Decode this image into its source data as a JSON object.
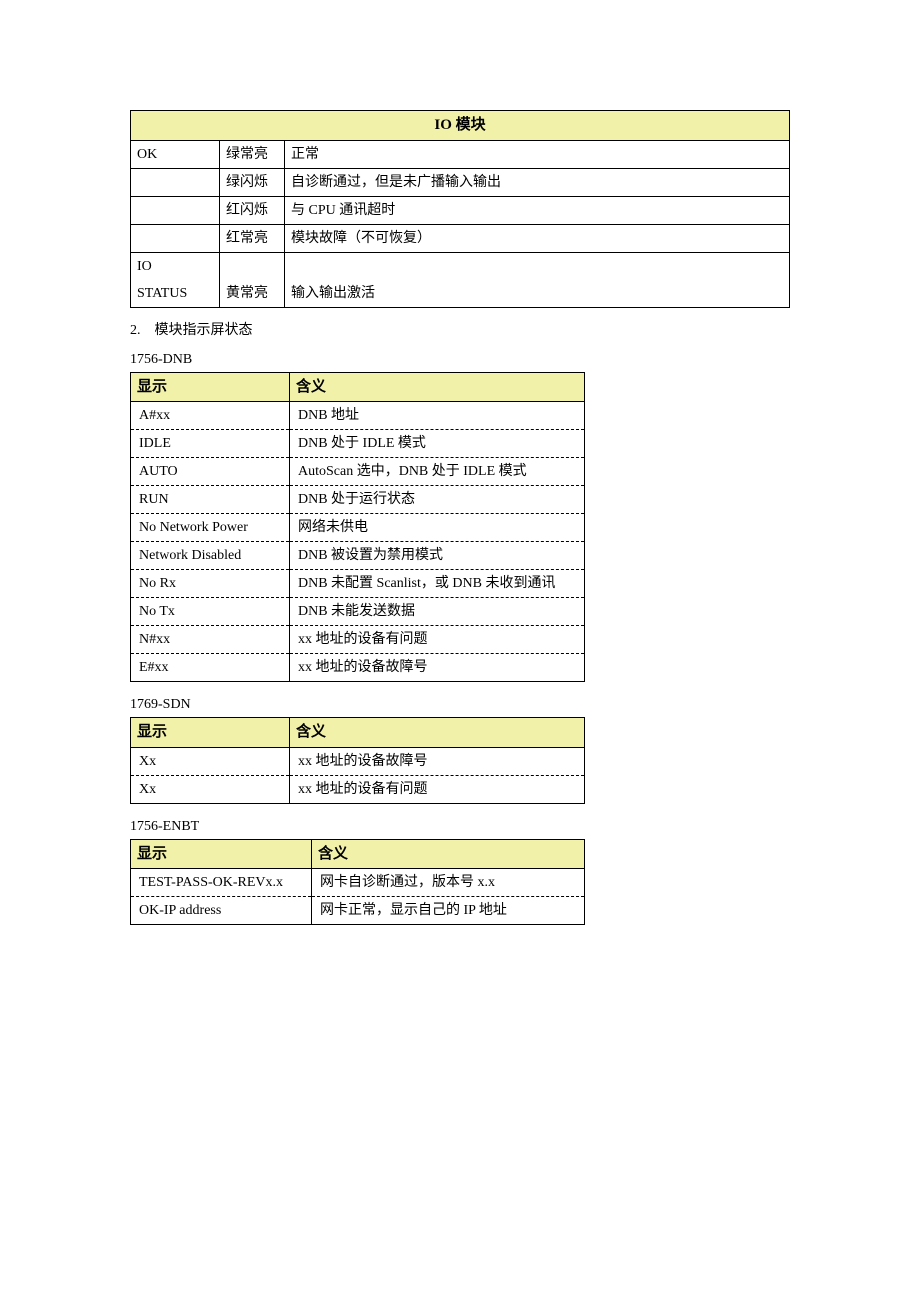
{
  "table_io": {
    "header": "IO 模块",
    "rows": [
      [
        "OK",
        "绿常亮",
        "正常"
      ],
      [
        "",
        "绿闪烁",
        "自诊断通过，但是未广播输入输出"
      ],
      [
        "",
        "红闪烁",
        "与 CPU 通讯超时"
      ],
      [
        "",
        "红常亮",
        "模块故障（不可恢复）"
      ],
      [
        "IO",
        "",
        ""
      ],
      [
        "STATUS",
        "黄常亮",
        "输入输出激活"
      ]
    ]
  },
  "section2_label": "2.　模块指示屏状态",
  "dnb_label": "1756-DNB",
  "table_dnb": {
    "header": [
      "显示",
      "含义"
    ],
    "rows": [
      [
        "A#xx",
        "DNB 地址"
      ],
      [
        "IDLE",
        "DNB 处于 IDLE 模式"
      ],
      [
        "AUTO",
        "AutoScan 选中，DNB 处于 IDLE 模式"
      ],
      [
        "RUN",
        "DNB 处于运行状态"
      ],
      [
        "No Network Power",
        "网络未供电"
      ],
      [
        "Network Disabled",
        "DNB 被设置为禁用模式"
      ],
      [
        "No Rx",
        "DNB 未配置 Scanlist，或 DNB 未收到通讯"
      ],
      [
        "No Tx",
        "DNB 未能发送数据"
      ],
      [
        "N#xx",
        "xx 地址的设备有问题"
      ],
      [
        "E#xx",
        "xx 地址的设备故障号"
      ]
    ]
  },
  "sdn_label": "1769-SDN",
  "table_sdn": {
    "header": [
      "显示",
      "含义"
    ],
    "rows": [
      [
        "Xx",
        "xx 地址的设备故障号"
      ],
      [
        "Xx",
        "xx 地址的设备有问题"
      ]
    ]
  },
  "enbt_label": "1756-ENBT",
  "table_enbt": {
    "header": [
      "显示",
      "含义"
    ],
    "rows": [
      [
        "TEST-PASS-OK-REVx.x",
        "网卡自诊断通过，版本号 x.x"
      ],
      [
        "OK-IP address",
        "网卡正常，显示自己的 IP 地址"
      ]
    ]
  }
}
